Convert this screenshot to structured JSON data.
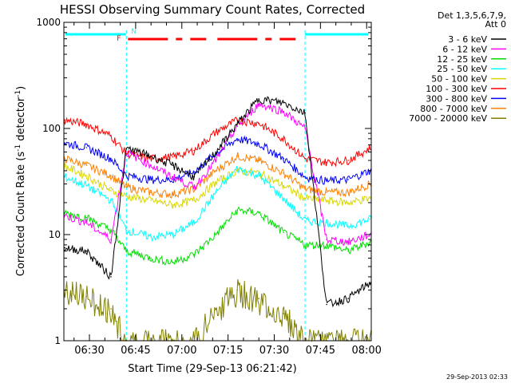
{
  "chart_data": {
    "type": "line",
    "title": "HESSI Observing Summary Count Rates, Corrected",
    "xlabel": "Start Time (29-Sep-13 06:21:42)",
    "ylabel_main": "Corrected Count Rate (s",
    "ylabel_sup1": "-1",
    "ylabel_mid": " detector",
    "ylabel_sup2": "-1",
    "ylabel_end": ")",
    "yscale": "log",
    "ylim": [
      1,
      1000
    ],
    "xlim": [
      "06:21:42",
      "08:01:30"
    ],
    "x_ticks": [
      "06:30",
      "06:45",
      "07:00",
      "07:15",
      "07:30",
      "07:45",
      "08:00"
    ],
    "y_ticks": [
      "1",
      "10",
      "100",
      "1000"
    ],
    "legend_header": [
      "Det 1,3,5,6,7,9,",
      "Att 0"
    ],
    "legend_position": "right",
    "footer_date": "29-Sep-2013 02:33",
    "flags": {
      "night": "N",
      "flare": "F"
    },
    "series": [
      {
        "name": "3 - 6 keV",
        "color": "#000000",
        "values": [
          7.5,
          7.0,
          4.0,
          65,
          55,
          45,
          35,
          60,
          110,
          190,
          175,
          140,
          2.2,
          2.5,
          3.5
        ]
      },
      {
        "name": "6 - 12 keV",
        "color": "#ff00ff",
        "values": [
          15.0,
          13.0,
          9.0,
          60,
          45,
          35,
          28,
          50,
          105,
          170,
          145,
          100,
          9.0,
          8.5,
          10.0
        ]
      },
      {
        "name": "12 - 25 keV",
        "color": "#00e000",
        "values": [
          16.0,
          14.5,
          11.0,
          7.0,
          6.0,
          5.5,
          6.5,
          10.0,
          17.0,
          16.0,
          10.5,
          8.0,
          8.0,
          7.0,
          8.5
        ]
      },
      {
        "name": "25 - 50 keV",
        "color": "#00ffff",
        "values": [
          35.0,
          29.0,
          21.0,
          11.0,
          9.5,
          10.0,
          13.0,
          25.0,
          42.0,
          36.0,
          22.0,
          13.5,
          13.0,
          12.0,
          14.0
        ]
      },
      {
        "name": "50 - 100 keV",
        "color": "#d8d800",
        "values": [
          44.0,
          36.0,
          26.0,
          23.0,
          21.0,
          19.0,
          21.0,
          31.0,
          40.0,
          38.0,
          29.0,
          22.0,
          21.0,
          20.0,
          22.0
        ]
      },
      {
        "name": "100 - 300 keV",
        "color": "#ff0000",
        "values": [
          120.0,
          110.0,
          85.0,
          58.0,
          52.0,
          54.0,
          62.0,
          92.0,
          120.0,
          112.0,
          80.0,
          52.0,
          48.0,
          50.0,
          65.0
        ]
      },
      {
        "name": "300 - 800 keV",
        "color": "#0000ff",
        "values": [
          73.0,
          66.0,
          52.0,
          36.0,
          33.0,
          33.0,
          39.0,
          58.0,
          80.0,
          72.0,
          52.0,
          35.0,
          32.0,
          33.0,
          40.0
        ]
      },
      {
        "name": "800 - 7000 keV",
        "color": "#ff8000",
        "values": [
          52.0,
          45.0,
          36.0,
          28.0,
          25.0,
          24.0,
          27.0,
          40.0,
          55.0,
          50.0,
          38.0,
          27.0,
          25.0,
          25.0,
          30.0
        ]
      },
      {
        "name": "7000 - 20000 keV",
        "color": "#808000",
        "values": [
          3.0,
          2.6,
          2.0,
          1.0,
          1.0,
          1.0,
          1.0,
          2.0,
          3.0,
          2.5,
          1.8,
          1.0,
          1.0,
          1.0,
          1.0
        ]
      }
    ],
    "x": [
      "06:22",
      "06:29",
      "06:37",
      "06:42",
      "06:50",
      "06:57",
      "07:04",
      "07:11",
      "07:18",
      "07:25",
      "07:33",
      "07:40",
      "07:47",
      "07:54",
      "08:01"
    ]
  }
}
